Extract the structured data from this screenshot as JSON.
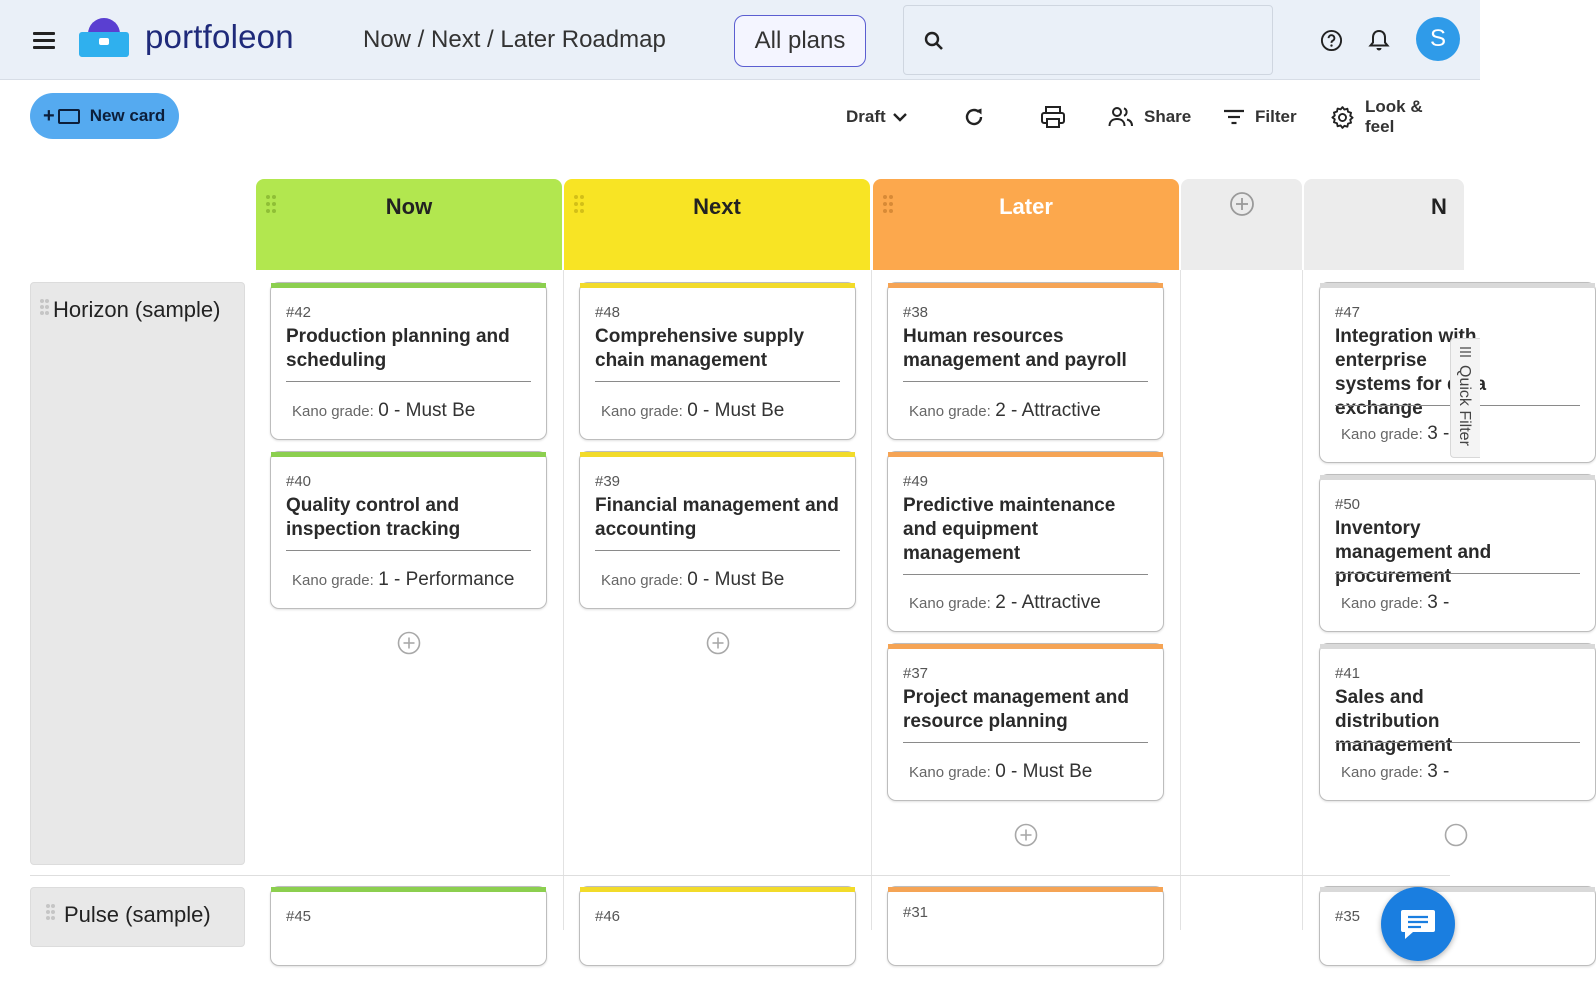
{
  "header": {
    "brand": "portfoleon",
    "breadcrumb": "Now / Next / Later Roadmap",
    "plans_button": "All plans",
    "search_placeholder": "",
    "avatar_initial": "S"
  },
  "toolbar": {
    "new_card": "New card",
    "draft": "Draft",
    "share": "Share",
    "filter": "Filter",
    "look_feel": "Look & feel"
  },
  "columns": [
    {
      "title": "Now",
      "color": "#b2e74f"
    },
    {
      "title": "Next",
      "color": "#f8e424"
    },
    {
      "title": "Later",
      "color": "#fca84d"
    },
    {
      "title": "N"
    }
  ],
  "lanes": [
    {
      "name": "Horizon (sample)"
    },
    {
      "name": "Pulse (sample)"
    }
  ],
  "kano_label": "Kano grade:",
  "cards": {
    "now": [
      {
        "id": "#42",
        "title": "Production planning and scheduling",
        "grade": "0 - Must Be"
      },
      {
        "id": "#40",
        "title": "Quality control and inspection tracking",
        "grade": "1 - Performance"
      }
    ],
    "next": [
      {
        "id": "#48",
        "title": "Comprehensive supply chain management",
        "grade": "0 - Must Be"
      },
      {
        "id": "#39",
        "title": "Financial management and accounting",
        "grade": "0 - Must Be"
      }
    ],
    "later": [
      {
        "id": "#38",
        "title": "Human resources management and payroll",
        "grade": "2 - Attractive"
      },
      {
        "id": "#49",
        "title": "Predictive maintenance and equipment management",
        "grade": "2 - Attractive"
      },
      {
        "id": "#37",
        "title": "Project management and resource planning",
        "grade": "0 - Must Be"
      }
    ],
    "n": [
      {
        "id": "#47",
        "title": "Integration with enterprise systems for data exchange",
        "grade": "3 -"
      },
      {
        "id": "#50",
        "title": "Inventory management and procurement",
        "grade": "3 -"
      },
      {
        "id": "#41",
        "title": "Sales and distribution management",
        "grade": "3 -"
      }
    ],
    "pulse": [
      {
        "id": "#45"
      },
      {
        "id": "#46"
      },
      {
        "id": "#31"
      },
      {
        "id": "#35"
      }
    ]
  },
  "quick_filter": "Quick Filter",
  "icons": [
    "hamburger-icon",
    "search-icon",
    "help-icon",
    "bell-icon",
    "chevron-down-icon",
    "refresh-icon",
    "print-icon",
    "share-people-icon",
    "filter-icon",
    "gear-icon",
    "add-circle-icon",
    "chat-icon",
    "drag-grip-icon"
  ]
}
